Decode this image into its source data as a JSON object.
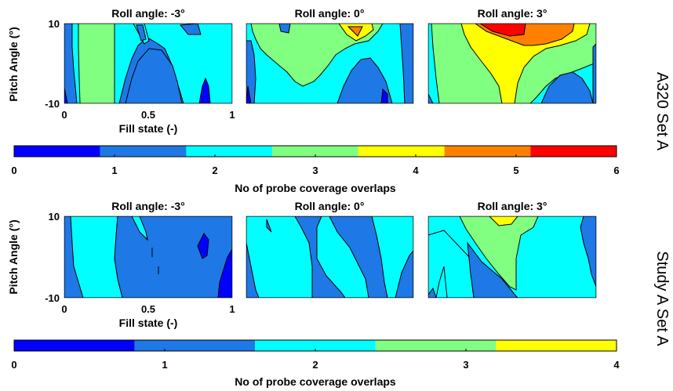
{
  "chart_data": [
    {
      "type": "contour",
      "group": "A320 Set A",
      "xlabel": "Fill state (-)",
      "ylabel": "Pitch Angle (°)",
      "x_ticks": [
        "0",
        "0.5",
        "1"
      ],
      "y_ticks": [
        "10",
        "-10"
      ],
      "xlim": [
        0,
        1
      ],
      "ylim": [
        -10,
        10
      ],
      "colorbar": {
        "label": "No of probe coverage overlaps",
        "min": 0,
        "max": 6,
        "ticks": [
          "0",
          "1",
          "2",
          "3",
          "4",
          "5",
          "6"
        ],
        "colors": [
          "#0000FF",
          "#1E78E6",
          "#00FFFF",
          "#80FF80",
          "#FFFF00",
          "#FF8000",
          "#FF0000"
        ]
      },
      "panels": [
        {
          "title": "Roll angle: -3°",
          "value_range": [
            0,
            2
          ]
        },
        {
          "title": "Roll angle: 0°",
          "value_range": [
            0,
            4
          ]
        },
        {
          "title": "Roll angle: 3°",
          "value_range": [
            1,
            6
          ]
        }
      ]
    },
    {
      "type": "contour",
      "group": "Study A Set A",
      "xlabel": "Fill state (-)",
      "ylabel": "Pitch Angle (°)",
      "x_ticks": [
        "0",
        "0.5",
        "1"
      ],
      "y_ticks": [
        "10",
        "-10"
      ],
      "xlim": [
        0,
        1
      ],
      "ylim": [
        -10,
        10
      ],
      "colorbar": {
        "label": "No of probe coverage overlaps",
        "min": 0,
        "max": 4,
        "ticks": [
          "0",
          "1",
          "2",
          "3",
          "4"
        ],
        "colors": [
          "#0000FF",
          "#1E78E6",
          "#00FFFF",
          "#80FF80",
          "#FFFF00"
        ]
      },
      "panels": [
        {
          "title": "Roll angle: -3°",
          "value_range": [
            0,
            2
          ]
        },
        {
          "title": "Roll angle: 0°",
          "value_range": [
            0,
            2
          ]
        },
        {
          "title": "Roll angle: 3°",
          "value_range": [
            1,
            4
          ]
        }
      ]
    }
  ]
}
